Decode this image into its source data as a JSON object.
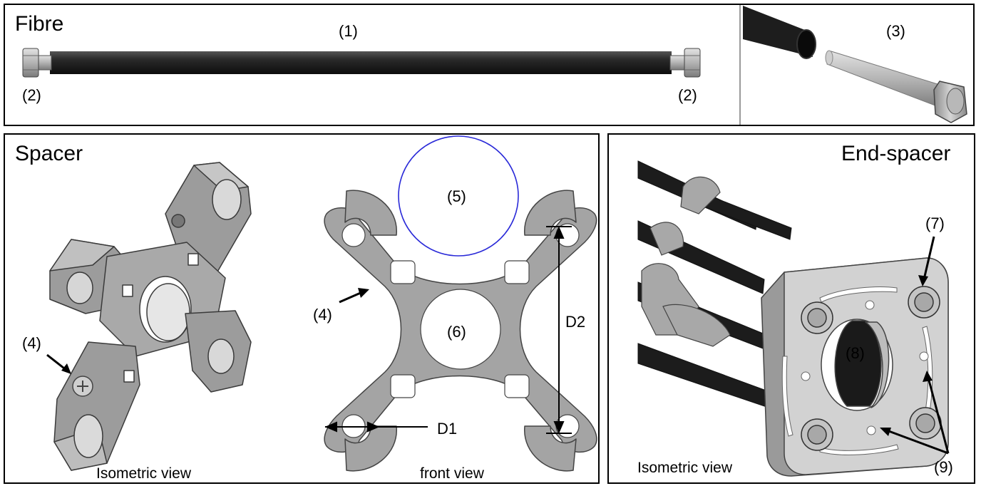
{
  "fibre": {
    "title": "Fibre",
    "label_rod": "(1)",
    "label_cap_left": "(2)",
    "label_cap_right": "(2)",
    "label_insert": "(3)"
  },
  "spacer": {
    "title": "Spacer",
    "label_screw_iso": "(4)",
    "label_screw_front": "(4)",
    "label_fibre_circle": "(5)",
    "label_center_hole": "(6)",
    "dim_d1": "D1",
    "dim_d2": "D2",
    "caption_iso": "Isometric view",
    "caption_front": "front view"
  },
  "end_spacer": {
    "title": "End-spacer",
    "label_nut": "(7)",
    "label_hole": "(8)",
    "label_slots": "(9)",
    "caption_iso": "Isometric view"
  },
  "colors": {
    "rod": "#1c1c1c",
    "metal": "#a3a3a3",
    "metal_dark": "#6f6f6f",
    "circle": "#2a2ad8"
  }
}
